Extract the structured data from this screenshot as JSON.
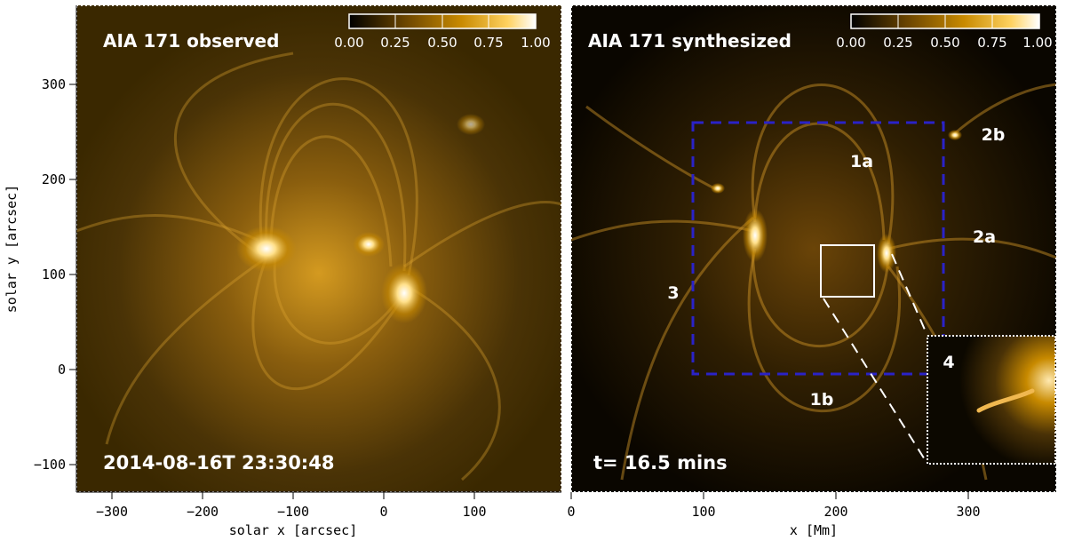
{
  "left_panel": {
    "title": "AIA 171 observed",
    "timestamp": "2014-08-16T 23:30:48",
    "x_axis_label": "solar x [arcsec]",
    "y_axis_label": "solar y [arcsec]",
    "x_ticks": [
      "−300",
      "−200",
      "−100",
      "0",
      "100"
    ],
    "y_ticks": [
      "300",
      "200",
      "100",
      "0",
      "−100"
    ]
  },
  "right_panel": {
    "title": "AIA 171 synthesized",
    "time_label": "t= 16.5 mins",
    "x_axis_label": "x [Mm]",
    "x_ticks": [
      "0",
      "100",
      "200",
      "300"
    ],
    "region_labels": [
      "1a",
      "1b",
      "2a",
      "2b",
      "3",
      "4"
    ]
  },
  "colorbar": {
    "ticks": [
      "0.00",
      "0.25",
      "0.50",
      "0.75",
      "1.00"
    ],
    "colors": [
      "#000000",
      "#6b4500",
      "#c88a00",
      "#ffd260",
      "#ffffff"
    ]
  },
  "colors": {
    "box_dashed": "#2a22c8",
    "inset_frame": "#ffffff",
    "background_observed": "#3a2800",
    "background_synth": "#0a0600"
  }
}
